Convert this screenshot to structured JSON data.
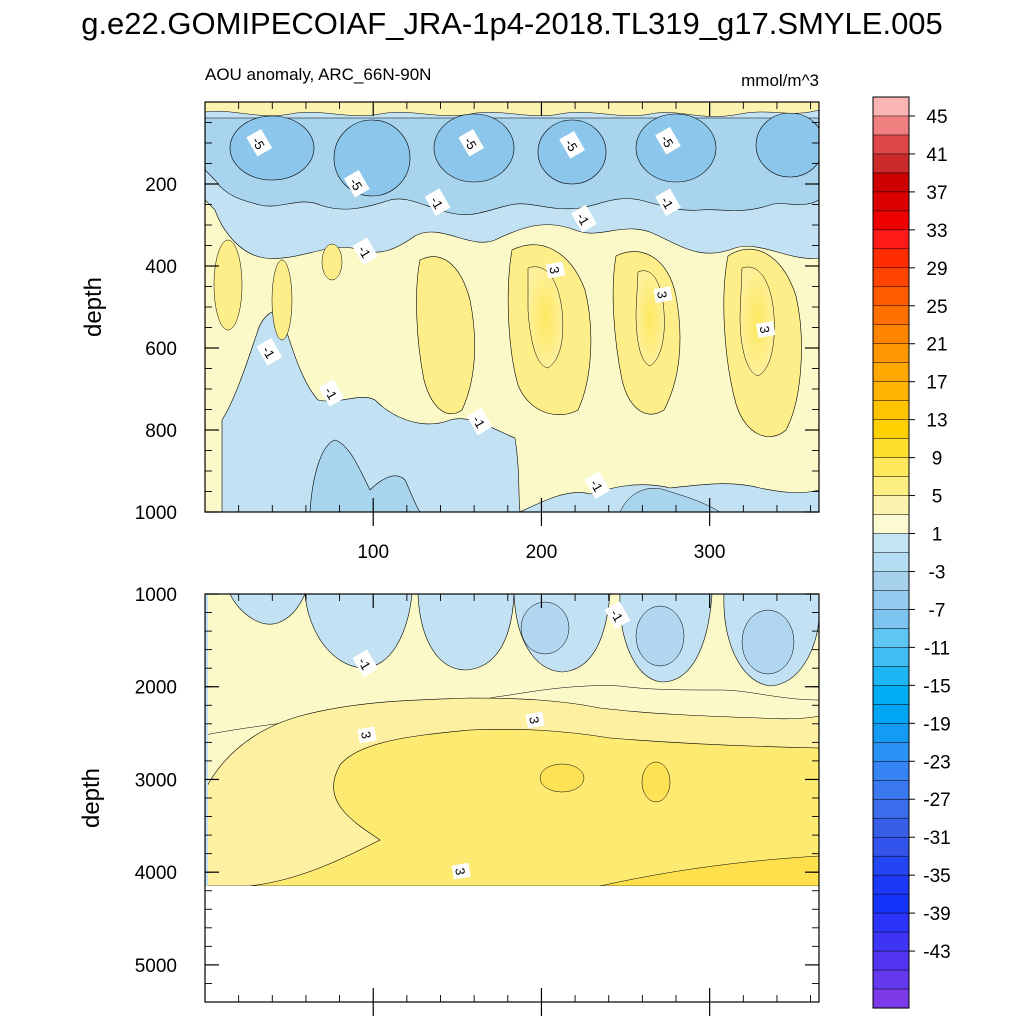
{
  "chart_data": {
    "type": "heatmap",
    "title": "g.e22.GOMIPECOIAF_JRA-1p4-2018.TL319_g17.SMYLE.005",
    "subtitle_left": "AOU anomaly, ARC_66N-90N",
    "subtitle_right": "mmol/m^3",
    "xlabel": "",
    "ylabel": "depth",
    "xlim": [
      0,
      365
    ],
    "x_ticks": [
      100,
      200,
      300
    ],
    "panels": [
      {
        "name": "upper-ocean",
        "ylim": [
          1000,
          0
        ],
        "y_ticks": [
          200,
          400,
          600,
          800,
          1000
        ],
        "contour_labels": [
          {
            "text": "-5",
            "x": 32,
            "depth": 100
          },
          {
            "text": "-5",
            "x": 90,
            "depth": 200
          },
          {
            "text": "-5",
            "x": 158,
            "depth": 100
          },
          {
            "text": "-5",
            "x": 218,
            "depth": 105
          },
          {
            "text": "-5",
            "x": 275,
            "depth": 95
          },
          {
            "text": "-1",
            "x": 138,
            "depth": 245
          },
          {
            "text": "-1",
            "x": 225,
            "depth": 285
          },
          {
            "text": "-1",
            "x": 275,
            "depth": 245
          },
          {
            "text": "-1",
            "x": 95,
            "depth": 365
          },
          {
            "text": "3",
            "x": 208,
            "depth": 410
          },
          {
            "text": "3",
            "x": 272,
            "depth": 470
          },
          {
            "text": "3",
            "x": 333,
            "depth": 555
          },
          {
            "text": "-1",
            "x": 38,
            "depth": 610
          },
          {
            "text": "-1",
            "x": 75,
            "depth": 710
          },
          {
            "text": "-1",
            "x": 163,
            "depth": 780
          },
          {
            "text": "-1",
            "x": 233,
            "depth": 935
          }
        ]
      },
      {
        "name": "deep-ocean",
        "ylim": [
          5400,
          1000
        ],
        "y_ticks": [
          1000,
          2000,
          3000,
          4000,
          5000
        ],
        "contour_labels": [
          {
            "text": "-1",
            "x": 245,
            "depth": 1230
          },
          {
            "text": "-1",
            "x": 95,
            "depth": 1750
          },
          {
            "text": "3",
            "x": 196,
            "depth": 2360
          },
          {
            "text": "3",
            "x": 96,
            "depth": 2520
          },
          {
            "text": "3",
            "x": 152,
            "depth": 3990
          }
        ]
      }
    ],
    "colorbar": {
      "labels": [
        "45",
        "41",
        "37",
        "33",
        "29",
        "25",
        "21",
        "17",
        "13",
        "9",
        "5",
        "1",
        "-3",
        "-7",
        "-11",
        "-15",
        "-19",
        "-23",
        "-27",
        "-31",
        "-35",
        "-39",
        "-43"
      ],
      "colors": [
        "#fbb4b4",
        "#f08080",
        "#e04848",
        "#cc2a2a",
        "#cc0000",
        "#dc0000",
        "#ee0000",
        "#ff1a1a",
        "#ff2d00",
        "#ff4400",
        "#ff5c00",
        "#ff7000",
        "#ff8400",
        "#ff9800",
        "#ffa800",
        "#ffb400",
        "#ffc400",
        "#ffd000",
        "#ffde2e",
        "#fee85c",
        "#fdee82",
        "#fcf4ae",
        "#fcfad2",
        "#c4e4f4",
        "#b4dcf2",
        "#a6d2ee",
        "#94caf0",
        "#7ec4f0",
        "#5ec6f4",
        "#40bef4",
        "#1cb6f4",
        "#00aef4",
        "#00a6f4",
        "#149cf4",
        "#2a92f4",
        "#3684f4",
        "#3a78f0",
        "#3c6cec",
        "#385ee8",
        "#3254ec",
        "#2446f2",
        "#1a38f6",
        "#1434fa",
        "#2c34fa",
        "#3e34f6",
        "#5034f0",
        "#6438ec",
        "#7c3ae8"
      ]
    }
  }
}
